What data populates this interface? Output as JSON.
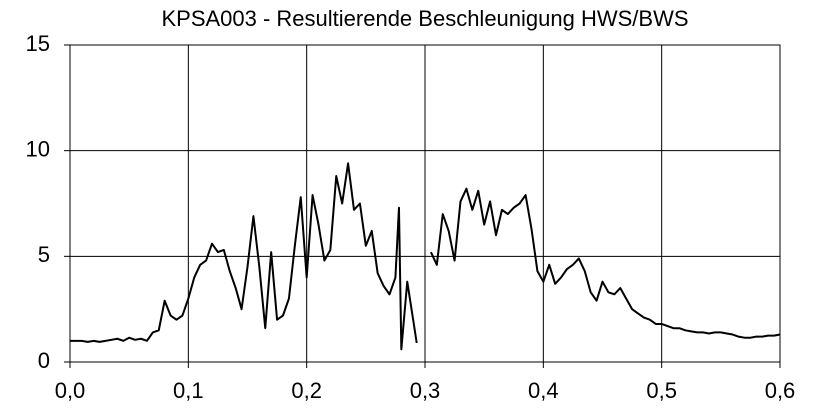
{
  "chart_data": {
    "type": "line",
    "title": "KPSA003 - Resultierende Beschleunigung HWS/BWS",
    "x": [
      0,
      0.005,
      0.01,
      0.015,
      0.02,
      0.025,
      0.03,
      0.035,
      0.04,
      0.045,
      0.05,
      0.055,
      0.06,
      0.065,
      0.07,
      0.075,
      0.08,
      0.085,
      0.09,
      0.095,
      0.1,
      0.105,
      0.11,
      0.115,
      0.12,
      0.125,
      0.13,
      0.135,
      0.14,
      0.145,
      0.15,
      0.155,
      0.16,
      0.165,
      0.17,
      0.175,
      0.18,
      0.185,
      0.19,
      0.195,
      0.2,
      0.205,
      0.21,
      0.215,
      0.22,
      0.225,
      0.23,
      0.235,
      0.24,
      0.245,
      0.25,
      0.255,
      0.26,
      0.265,
      0.27,
      0.275,
      0.278,
      0.28,
      0.285,
      0.29,
      0.293,
      0.298,
      0.305,
      0.31,
      0.315,
      0.32,
      0.325,
      0.33,
      0.335,
      0.34,
      0.345,
      0.35,
      0.355,
      0.36,
      0.365,
      0.37,
      0.375,
      0.38,
      0.385,
      0.39,
      0.395,
      0.4,
      0.405,
      0.41,
      0.415,
      0.42,
      0.425,
      0.43,
      0.435,
      0.44,
      0.445,
      0.45,
      0.455,
      0.46,
      0.465,
      0.47,
      0.475,
      0.48,
      0.485,
      0.49,
      0.495,
      0.5,
      0.505,
      0.51,
      0.515,
      0.52,
      0.525,
      0.53,
      0.535,
      0.54,
      0.545,
      0.55,
      0.555,
      0.56,
      0.565,
      0.57,
      0.575,
      0.58,
      0.585,
      0.59,
      0.595,
      0.6
    ],
    "values": [
      1.0,
      1.0,
      1.0,
      0.95,
      1.0,
      0.95,
      1.0,
      1.05,
      1.1,
      1.0,
      1.15,
      1.05,
      1.1,
      1.0,
      1.4,
      1.5,
      2.9,
      2.2,
      2.0,
      2.2,
      3.0,
      4.0,
      4.6,
      4.8,
      5.6,
      5.2,
      5.3,
      4.3,
      3.5,
      2.5,
      4.5,
      6.9,
      4.5,
      1.6,
      5.2,
      2.0,
      2.2,
      3.0,
      5.5,
      7.8,
      4.0,
      7.9,
      6.5,
      4.8,
      5.3,
      8.8,
      7.5,
      9.4,
      7.2,
      7.5,
      5.5,
      6.2,
      4.2,
      3.6,
      3.2,
      4.0,
      7.3,
      0.6,
      3.8,
      2.0,
      0.9,
      null,
      5.2,
      4.6,
      7.0,
      6.2,
      4.8,
      7.6,
      8.2,
      7.2,
      8.1,
      6.5,
      7.6,
      6.0,
      7.2,
      7.0,
      7.3,
      7.5,
      7.9,
      6.3,
      4.3,
      3.8,
      4.6,
      3.7,
      4.0,
      4.4,
      4.6,
      4.9,
      4.3,
      3.3,
      2.9,
      3.8,
      3.3,
      3.2,
      3.5,
      3.0,
      2.5,
      2.3,
      2.1,
      2.0,
      1.8,
      1.8,
      1.7,
      1.6,
      1.6,
      1.5,
      1.45,
      1.4,
      1.4,
      1.35,
      1.4,
      1.4,
      1.35,
      1.3,
      1.2,
      1.15,
      1.15,
      1.2,
      1.2,
      1.25,
      1.25,
      1.3
    ],
    "color": "#000000",
    "xlim": [
      0,
      0.6
    ],
    "xticks": [
      {
        "value": 0,
        "label": "0,0"
      },
      {
        "value": 0.1,
        "label": "0,1"
      },
      {
        "value": 0.2,
        "label": "0,2"
      },
      {
        "value": 0.3,
        "label": "0,3"
      },
      {
        "value": 0.4,
        "label": "0,4"
      },
      {
        "value": 0.5,
        "label": "0,5"
      },
      {
        "value": 0.6,
        "label": "0,6"
      }
    ],
    "ylim": [
      0,
      15
    ],
    "yticks": [
      0,
      5,
      10,
      15
    ],
    "grid": true
  }
}
